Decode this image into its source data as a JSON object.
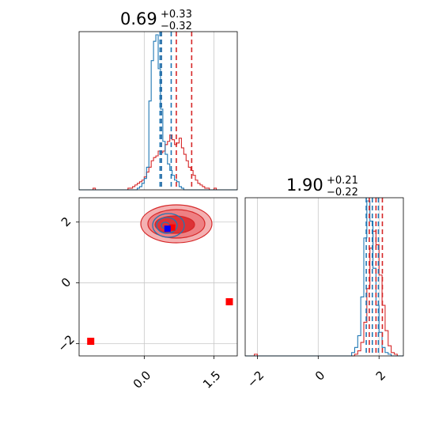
{
  "chart_data": {
    "type": "corner",
    "colors": {
      "run_a": "#1f77b4",
      "run_b": "#d62728",
      "grid": "#c8c8c8",
      "truth_a": "#0000ff",
      "truth_b": "#ff0000"
    },
    "params": [
      {
        "title_value": "0.69",
        "title_plus": "+0.33",
        "title_minus": "−0.32",
        "range": [
          -1.4,
          2.0
        ]
      },
      {
        "title_value": "1.90",
        "title_plus": "+0.21",
        "title_minus": "−0.22",
        "range": [
          -2.4,
          2.8
        ]
      }
    ],
    "ticks": {
      "x0": [
        "0.0",
        "1.5"
      ],
      "y1": [
        "2",
        "0",
        "−2"
      ],
      "x1": [
        "−2",
        "0",
        "2"
      ]
    },
    "tick_values": {
      "x0": [
        0.0,
        1.5
      ],
      "y1": [
        2,
        0,
        -2
      ],
      "x1": [
        -2,
        0,
        2
      ]
    },
    "hist_0": {
      "bin_start": -1.4,
      "bin_width": 0.05,
      "run_a": [
        0,
        0,
        0,
        0,
        0,
        0,
        0,
        0,
        0,
        0,
        0,
        0,
        0,
        0,
        0,
        0,
        0,
        0,
        0,
        0,
        0,
        0,
        0,
        0,
        0,
        1,
        2,
        4,
        7,
        14,
        55,
        80,
        92,
        96,
        75,
        50,
        30,
        22,
        16,
        12,
        9,
        6,
        5,
        2,
        1,
        0,
        0,
        0,
        0,
        0,
        0,
        0,
        0,
        0,
        0,
        0,
        0,
        0,
        0,
        0,
        0,
        0,
        0,
        0,
        0,
        0,
        0,
        0
      ],
      "run_b": [
        0,
        0,
        0,
        0,
        0,
        0,
        1,
        0,
        0,
        0,
        0,
        0,
        0,
        0,
        0,
        0,
        0,
        0,
        0,
        0,
        0,
        1,
        1,
        2,
        3,
        4,
        5,
        6,
        8,
        11,
        14,
        18,
        20,
        21,
        24,
        23,
        24,
        28,
        30,
        34,
        31,
        28,
        29,
        32,
        26,
        22,
        18,
        14,
        12,
        9,
        6,
        4,
        3,
        2,
        1,
        1,
        0,
        0,
        1,
        0,
        0,
        0,
        0,
        0,
        0,
        0,
        0,
        0
      ],
      "quantiles_a": [
        0.34,
        0.37,
        0.58
      ],
      "quantiles_b": [
        0.37,
        0.69,
        1.02
      ]
    },
    "hist_1": {
      "bin_start": -2.4,
      "bin_width": 0.1,
      "run_a": [
        0,
        0,
        0,
        0,
        0,
        0,
        0,
        0,
        0,
        0,
        0,
        0,
        0,
        0,
        0,
        0,
        0,
        0,
        0,
        0,
        0,
        0,
        0,
        0,
        0,
        0,
        0,
        0,
        0,
        0,
        0,
        0,
        0,
        0,
        0,
        2,
        5,
        12,
        35,
        70,
        92,
        80,
        52,
        30,
        14,
        5,
        2,
        1,
        0,
        0,
        0,
        0
      ],
      "run_b": [
        0,
        0,
        0,
        1,
        0,
        0,
        0,
        0,
        0,
        0,
        0,
        0,
        0,
        0,
        0,
        0,
        0,
        0,
        0,
        0,
        0,
        0,
        0,
        0,
        0,
        0,
        0,
        0,
        0,
        0,
        0,
        0,
        0,
        0,
        0,
        0,
        1,
        3,
        8,
        20,
        40,
        64,
        74,
        66,
        48,
        30,
        15,
        6,
        2,
        1,
        0,
        0
      ],
      "quantiles_a": [
        1.58,
        1.78,
        1.98
      ],
      "quantiles_b": [
        1.68,
        1.9,
        2.11
      ]
    },
    "scatter": {
      "outliers": [
        [
          -1.15,
          -1.92
        ],
        [
          1.83,
          -0.62
        ]
      ],
      "truth_a": [
        0.5,
        1.78
      ],
      "truth_b": [
        0.6,
        1.82
      ]
    }
  }
}
